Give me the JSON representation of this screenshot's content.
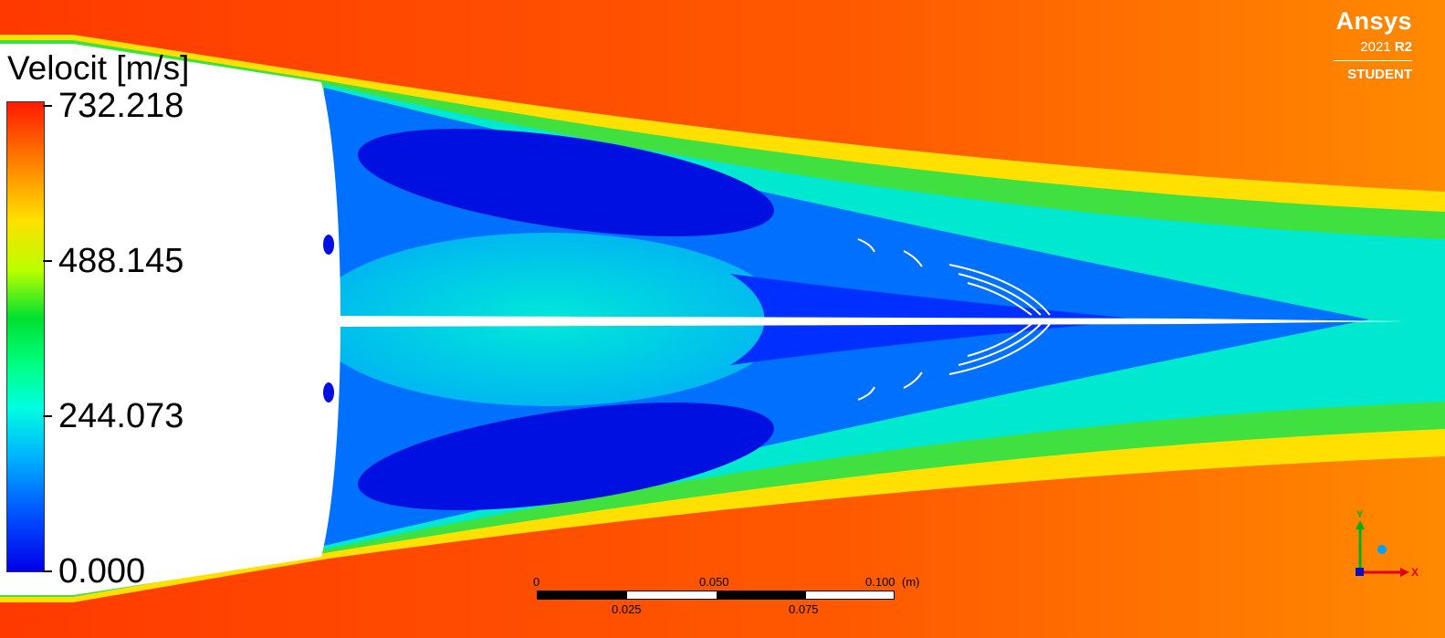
{
  "legend": {
    "title": "Velocit [m/s]",
    "ticks": [
      "732.218",
      "488.145",
      "244.073",
      "0.000"
    ],
    "colormap": [
      "#0000e8",
      "#0050ff",
      "#00b0ff",
      "#00ffe0",
      "#00ff80",
      "#00e030",
      "#b8ff00",
      "#ffe000",
      "#ff7a00",
      "#ff1a00"
    ]
  },
  "brand": {
    "name": "Ansys",
    "version": "2021",
    "release": "R2",
    "edition": "STUDENT"
  },
  "scale_bar": {
    "top_labels": [
      "0",
      "0.050",
      "0.100"
    ],
    "bottom_labels": [
      "0.025",
      "0.075"
    ],
    "unit": "(m)"
  },
  "axes_triad": {
    "x_label": "X",
    "y_label": "Y",
    "colors": {
      "x": "#e00000",
      "y": "#00b000",
      "z": "#00a0ff"
    }
  }
}
